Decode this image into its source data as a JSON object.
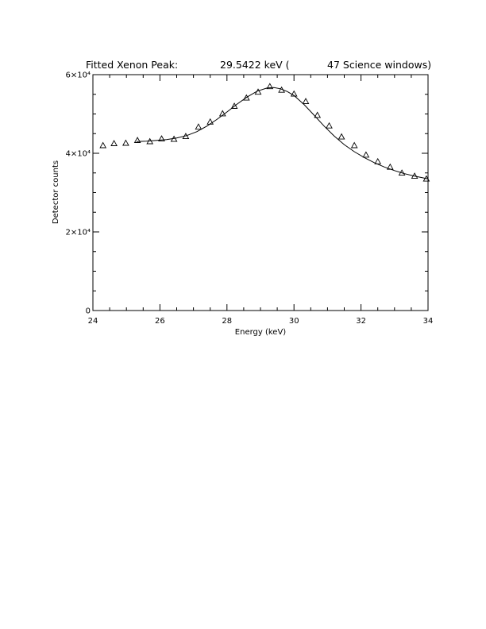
{
  "chart_data": {
    "type": "scatter",
    "title": {
      "prefix": "Fitted Xenon Peak:",
      "value": "29.5422 keV (",
      "suffix": "47 Science windows)"
    },
    "xlabel": "Energy (keV)",
    "ylabel": "Detector counts",
    "xlim": [
      24,
      34
    ],
    "ylim": [
      0,
      60000
    ],
    "x_ticks": [
      {
        "value": 24,
        "label": "24"
      },
      {
        "value": 26,
        "label": "26"
      },
      {
        "value": 28,
        "label": "28"
      },
      {
        "value": 30,
        "label": "30"
      },
      {
        "value": 32,
        "label": "32"
      },
      {
        "value": 34,
        "label": "34"
      }
    ],
    "y_ticks": [
      {
        "value": 0,
        "label": "0"
      },
      {
        "value": 20000,
        "label": "2×10⁴"
      },
      {
        "value": 40000,
        "label": "4×10⁴"
      },
      {
        "value": 60000,
        "label": "6×10⁴"
      }
    ],
    "x_minor_step": 0.5,
    "y_minor_step": 5000,
    "grid": false,
    "series": [
      {
        "marker": "triangle",
        "x": [
          24.3,
          24.63,
          24.98,
          25.33,
          25.7,
          26.05,
          26.42,
          26.77,
          27.15,
          27.5,
          27.87,
          28.22,
          28.58,
          28.93,
          29.28,
          29.63,
          30.0,
          30.35,
          30.7,
          31.05,
          31.42,
          31.8,
          32.15,
          32.5,
          32.87,
          33.22,
          33.6,
          33.95
        ],
        "y": [
          42000,
          42500,
          42600,
          43300,
          43000,
          43700,
          43600,
          44300,
          46700,
          48000,
          50100,
          52000,
          54100,
          55600,
          57000,
          56100,
          55100,
          53200,
          49700,
          47000,
          44200,
          42000,
          39600,
          37900,
          36500,
          35000,
          34200,
          33500
        ]
      },
      {
        "marker": "none",
        "x": [
          25.3,
          25.6,
          25.9,
          26.2,
          26.5,
          26.8,
          27.1,
          27.4,
          27.7,
          28.0,
          28.3,
          28.6,
          28.9,
          29.2,
          29.4,
          29.6,
          29.8,
          30.0,
          30.3,
          30.6,
          30.9,
          31.2,
          31.5,
          31.8,
          32.1,
          32.4,
          32.7,
          33.0,
          33.3,
          33.6,
          34.0
        ],
        "y": [
          43000,
          43100,
          43300,
          43500,
          43900,
          44500,
          45500,
          46900,
          48600,
          50500,
          52500,
          54300,
          55800,
          56600,
          56700,
          56400,
          55700,
          54700,
          52400,
          49700,
          46900,
          44400,
          42200,
          40400,
          38900,
          37600,
          36500,
          35600,
          34800,
          34200,
          33500
        ]
      }
    ]
  }
}
